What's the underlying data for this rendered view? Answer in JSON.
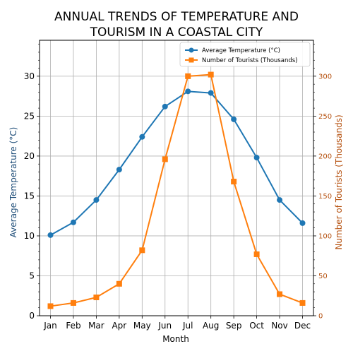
{
  "chart_data": {
    "type": "line",
    "title": "ANNUAL TRENDS OF TEMPERATURE AND TOURISM IN A COASTAL CITY",
    "title_lines": [
      "ANNUAL TRENDS OF TEMPERATURE AND",
      "TOURISM IN A COASTAL CITY"
    ],
    "xlabel": "Month",
    "ylabel_left": "Average Temperature (°C)",
    "ylabel_right": "Number of Tourists (Thousands)",
    "categories": [
      "Jan",
      "Feb",
      "Mar",
      "Apr",
      "May",
      "Jun",
      "Jul",
      "Aug",
      "Sep",
      "Oct",
      "Nov",
      "Dec"
    ],
    "ylim_left": [
      0,
      34.5
    ],
    "yticks_left": [
      0,
      5,
      10,
      15,
      20,
      25,
      30
    ],
    "ylim_right": [
      0,
      345
    ],
    "yticks_right": [
      0,
      50,
      100,
      150,
      200,
      250,
      300
    ],
    "grid": true,
    "legend_position": "top-right",
    "series": [
      {
        "name": "Average Temperature (°C)",
        "axis": "left",
        "marker": "circle",
        "color": "#1f77b4",
        "values": [
          10.1,
          11.7,
          14.5,
          18.3,
          22.4,
          26.2,
          28.1,
          27.9,
          24.6,
          19.8,
          14.5,
          11.6
        ]
      },
      {
        "name": "Number of Tourists (Thousands)",
        "axis": "right",
        "marker": "square",
        "color": "#ff7f0e",
        "values": [
          12,
          16,
          23,
          40,
          82,
          196,
          300,
          302,
          168,
          77,
          27,
          16
        ]
      }
    ],
    "colors": {
      "left_axis_text": "#1f4e79",
      "right_axis_text": "#b5500e",
      "grid": "#b0b0b0"
    }
  }
}
